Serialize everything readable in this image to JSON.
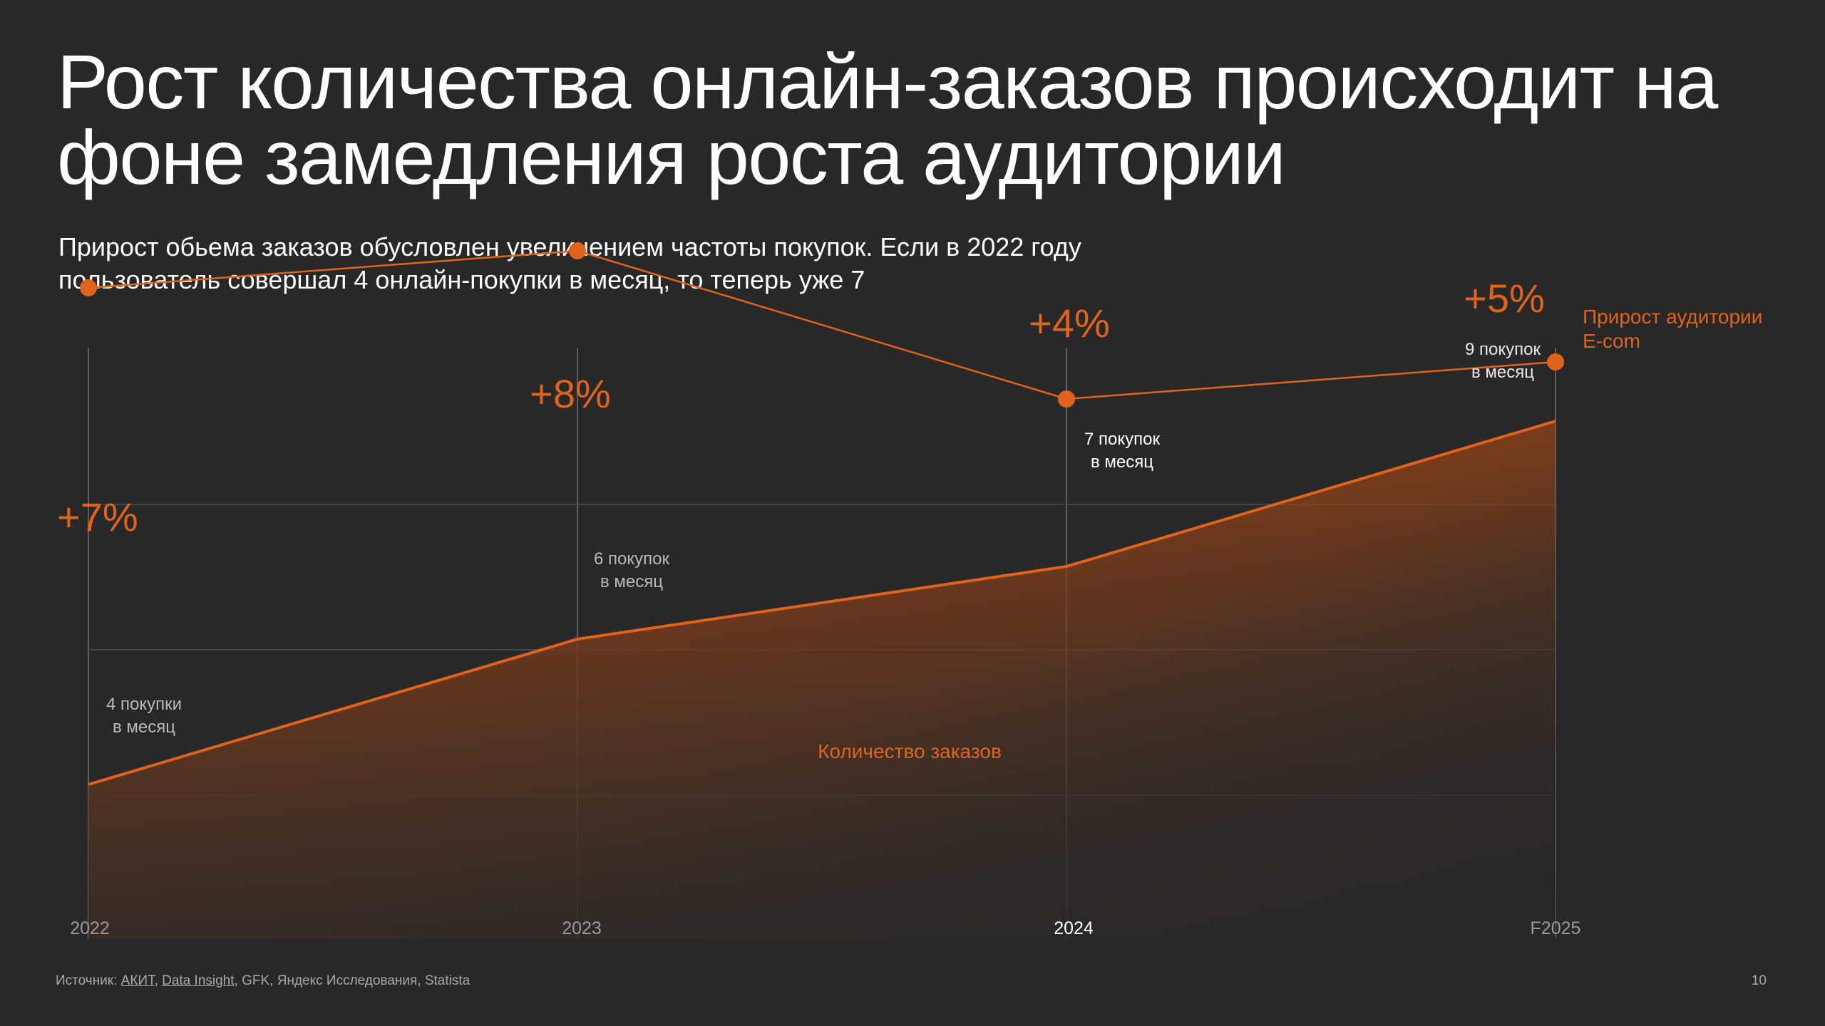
{
  "title": "Рост количества онлайн-заказов происходит на фоне замедления роста аудитории",
  "subtitle": "Прирост обьема заказов обусловлен увеличением частоты покупок. Если в 2022 году пользователь совершал 4 онлайн-покупки в месяц, то теперь уже 7",
  "footer": {
    "label": "Источник:",
    "sources": [
      "АКИТ",
      "Data Insight",
      "GFK",
      "Яндекс Исследования",
      "Statista"
    ],
    "page_number": "10"
  },
  "colors": {
    "background": "#282828",
    "accent": "#e0631d",
    "area_top": "#c94f0e",
    "grid": "#555555",
    "tick_text": "#9a9a9a",
    "highlight_tick_text": "#ffffff"
  },
  "chart_data": {
    "type": "line",
    "categories": [
      "2022",
      "2023",
      "2024",
      "F2025"
    ],
    "highlighted_category": "2024",
    "legend_placement": "right",
    "series": [
      {
        "name": "Прирост аудитории E-com",
        "kind": "line-with-markers",
        "values": [
          7,
          8,
          4,
          5
        ],
        "labels": [
          "+7%",
          "+8%",
          "+4%",
          "+5%"
        ]
      },
      {
        "name": "Количество заказов",
        "kind": "area",
        "values": [
          4,
          6,
          7,
          9
        ],
        "labels": [
          "4 покупки в месяц",
          "6 покупок в месяц",
          "7 покупок в месяц",
          "9 покупок в месяц"
        ]
      }
    ],
    "grid": true
  }
}
